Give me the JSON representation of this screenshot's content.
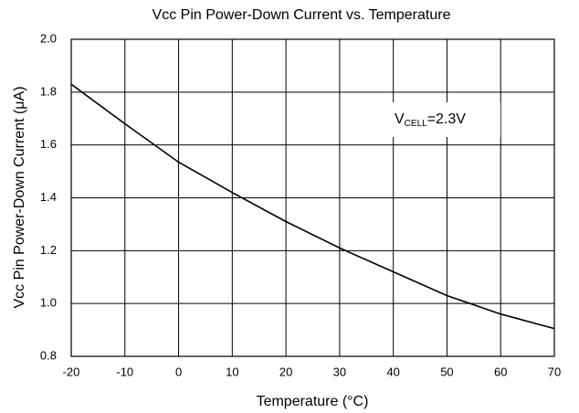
{
  "chart_data": {
    "type": "line",
    "title": "Vcc Pin Power-Down Current vs. Temperature",
    "x_label": "Temperature (°C)",
    "y_label": "Vcc Pin Power-Down Current (μA)",
    "annotation": {
      "main": "V",
      "sub": "CELL",
      "rest": "=2.3V"
    },
    "x": [
      -20,
      -10,
      0,
      10,
      20,
      30,
      40,
      50,
      60,
      70
    ],
    "series": [
      {
        "color": "#000000",
        "values": [
          1.83,
          1.68,
          1.535,
          1.42,
          1.31,
          1.21,
          1.12,
          1.03,
          0.96,
          0.905
        ]
      }
    ],
    "xlim": [
      -20,
      70
    ],
    "xticks": [
      -20,
      -10,
      0,
      10,
      20,
      30,
      40,
      50,
      60,
      70
    ],
    "ylim": [
      0.8,
      2.0
    ],
    "yticks": [
      0.8,
      {
        "value": 1.0,
        "label": "1.0"
      },
      1.2,
      1.4,
      1.6,
      1.8,
      {
        "value": 2.0,
        "label": "2.0"
      }
    ],
    "grid": true
  }
}
